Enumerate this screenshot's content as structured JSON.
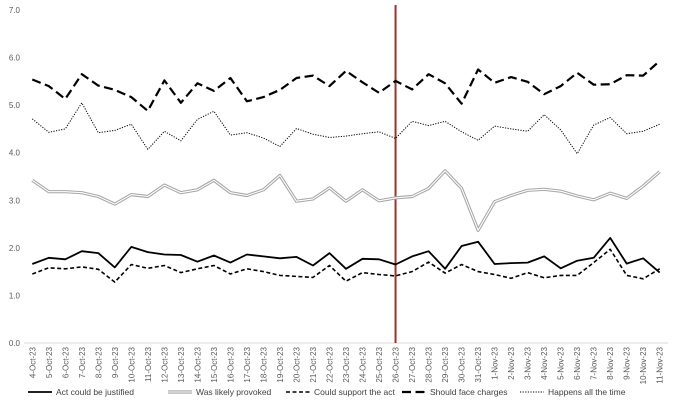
{
  "chart_data": {
    "type": "line",
    "title": "",
    "xlabel": "",
    "ylabel": "",
    "ylim": [
      0,
      7
    ],
    "yticks": [
      "0.0",
      "1.0",
      "2.0",
      "3.0",
      "4.0",
      "5.0",
      "6.0",
      "7.0"
    ],
    "grid": false,
    "legend_position": "bottom",
    "categories": [
      "4-Oct-23",
      "5-Oct-23",
      "6-Oct-23",
      "7-Oct-23",
      "8-Oct-23",
      "9-Oct-23",
      "10-Oct-23",
      "11-Oct-23",
      "12-Oct-23",
      "13-Oct-23",
      "14-Oct-23",
      "15-Oct-23",
      "16-Oct-23",
      "17-Oct-23",
      "18-Oct-23",
      "19-Oct-23",
      "20-Oct-23",
      "21-Oct-23",
      "22-Oct-23",
      "23-Oct-23",
      "24-Oct-23",
      "25-Oct-23",
      "26-Oct-23",
      "27-Oct-23",
      "28-Oct-23",
      "29-Oct-23",
      "30-Oct-23",
      "31-Oct-23",
      "1-Nov-23",
      "2-Nov-23",
      "3-Nov-23",
      "4-Nov-23",
      "5-Nov-23",
      "6-Nov-23",
      "7-Nov-23",
      "8-Nov-23",
      "9-Nov-23",
      "10-Nov-23",
      "11-Nov-23"
    ],
    "reference_line": {
      "category": "26-Oct-23",
      "color": "#a0302a"
    },
    "series": [
      {
        "name": "Act could be justified",
        "color": "#000000",
        "style": "solid",
        "values": [
          1.66,
          1.79,
          1.76,
          1.93,
          1.89,
          1.59,
          2.02,
          1.91,
          1.86,
          1.85,
          1.71,
          1.84,
          1.69,
          1.86,
          1.82,
          1.78,
          1.81,
          1.63,
          1.89,
          1.56,
          1.77,
          1.76,
          1.65,
          1.82,
          1.93,
          1.56,
          2.04,
          2.13,
          1.66,
          1.68,
          1.69,
          1.82,
          1.57,
          1.73,
          1.79,
          2.21,
          1.67,
          1.78,
          1.48
        ]
      },
      {
        "name": "Was likely provoked",
        "color": "#a6a6a6",
        "style": "double",
        "values": [
          3.42,
          3.18,
          3.18,
          3.16,
          3.08,
          2.92,
          3.12,
          3.08,
          3.32,
          3.16,
          3.22,
          3.42,
          3.16,
          3.1,
          3.22,
          3.52,
          2.98,
          3.03,
          3.26,
          2.98,
          3.22,
          2.99,
          3.05,
          3.08,
          3.25,
          3.62,
          3.25,
          2.37,
          2.97,
          3.1,
          3.21,
          3.23,
          3.19,
          3.09,
          3.01,
          3.15,
          3.04,
          3.3,
          3.6
        ]
      },
      {
        "name": "Could support the act",
        "color": "#000000",
        "style": "dashed",
        "values": [
          1.45,
          1.58,
          1.56,
          1.6,
          1.55,
          1.28,
          1.65,
          1.57,
          1.63,
          1.48,
          1.56,
          1.63,
          1.45,
          1.56,
          1.5,
          1.42,
          1.4,
          1.38,
          1.63,
          1.3,
          1.48,
          1.44,
          1.41,
          1.5,
          1.7,
          1.47,
          1.65,
          1.5,
          1.44,
          1.36,
          1.48,
          1.37,
          1.42,
          1.42,
          1.69,
          1.97,
          1.42,
          1.35,
          1.56
        ]
      },
      {
        "name": "Should face charges",
        "color": "#000000",
        "style": "longdash",
        "values": [
          5.54,
          5.4,
          5.13,
          5.65,
          5.41,
          5.32,
          5.17,
          4.88,
          5.52,
          5.05,
          5.46,
          5.3,
          5.57,
          5.08,
          5.17,
          5.32,
          5.57,
          5.62,
          5.4,
          5.72,
          5.48,
          5.26,
          5.51,
          5.33,
          5.65,
          5.46,
          5.03,
          5.75,
          5.47,
          5.59,
          5.49,
          5.23,
          5.4,
          5.68,
          5.43,
          5.44,
          5.63,
          5.62,
          5.93
        ]
      },
      {
        "name": "Happens all the time",
        "color": "#000000",
        "style": "dotted",
        "values": [
          4.71,
          4.43,
          4.5,
          5.05,
          4.42,
          4.47,
          4.6,
          4.07,
          4.45,
          4.25,
          4.7,
          4.87,
          4.37,
          4.42,
          4.31,
          4.13,
          4.51,
          4.39,
          4.32,
          4.35,
          4.4,
          4.44,
          4.3,
          4.66,
          4.57,
          4.66,
          4.44,
          4.26,
          4.56,
          4.5,
          4.45,
          4.8,
          4.48,
          3.98,
          4.58,
          4.74,
          4.4,
          4.45,
          4.6
        ]
      }
    ]
  }
}
